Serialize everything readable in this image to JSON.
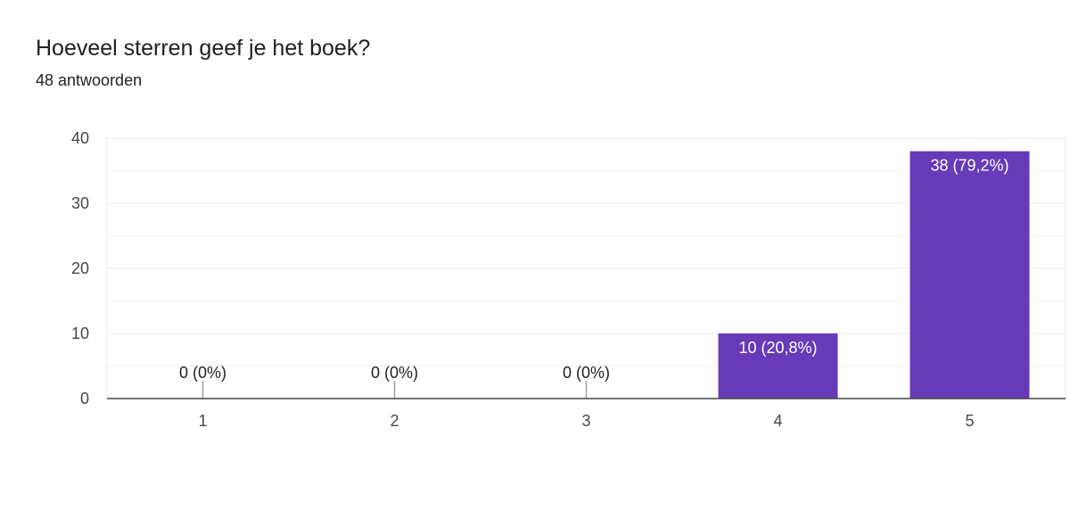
{
  "header": {
    "title": "Hoeveel sterren geef je het boek?",
    "subtitle": "48 antwoorden"
  },
  "colors": {
    "bar": "#673ab7",
    "grid": "#e8eaed",
    "minor_grid": "#f3f3f3",
    "axis": "#444746",
    "text": "#202124",
    "label_inside": "#ffffff",
    "label_outside": "#202124"
  },
  "chart_data": {
    "type": "bar",
    "title": "Hoeveel sterren geef je het boek?",
    "subtitle": "48 antwoorden",
    "categories": [
      "1",
      "2",
      "3",
      "4",
      "5"
    ],
    "values": [
      0,
      0,
      0,
      10,
      38
    ],
    "data_labels": [
      "0 (0%)",
      "0 (0%)",
      "0 (0%)",
      "10 (20,8%)",
      "38 (79,2%)"
    ],
    "ylim": [
      0,
      40
    ],
    "yticks": [
      "0",
      "10",
      "20",
      "30",
      "40"
    ],
    "grid": true,
    "legend": "none"
  }
}
